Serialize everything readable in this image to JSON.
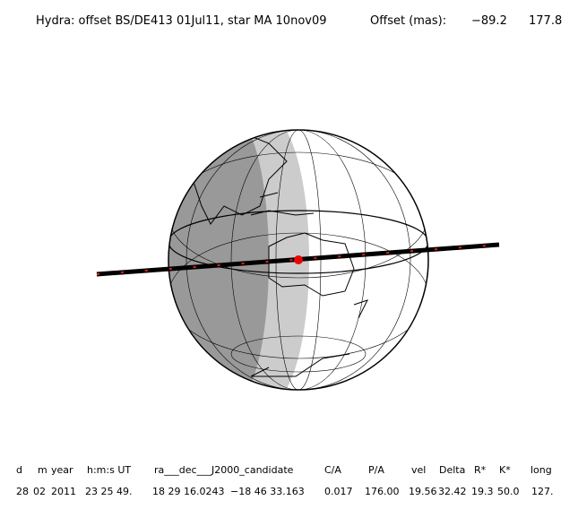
{
  "header": {
    "title": "Hydra: offset BS/DE413 01Jul11, star MA 10nov09",
    "offset_label": "Offset (mas):",
    "offset_values": [
      "−89.2",
      "177.8"
    ]
  },
  "table": {
    "columns": [
      "d",
      "m",
      "year",
      "h:m:s UT",
      "ra___dec___J2000_candidate",
      "C/A",
      "P/A",
      "vel",
      "Delta",
      "R*",
      "K*",
      "long"
    ],
    "rows": [
      [
        "28",
        "02",
        "2011",
        "23 25 49.",
        "18 29 16.0243",
        "−18 46 33.163",
        "0.017",
        "176.00",
        "19.56",
        "32.42",
        "19.3",
        "50.0",
        "127."
      ]
    ]
  }
}
